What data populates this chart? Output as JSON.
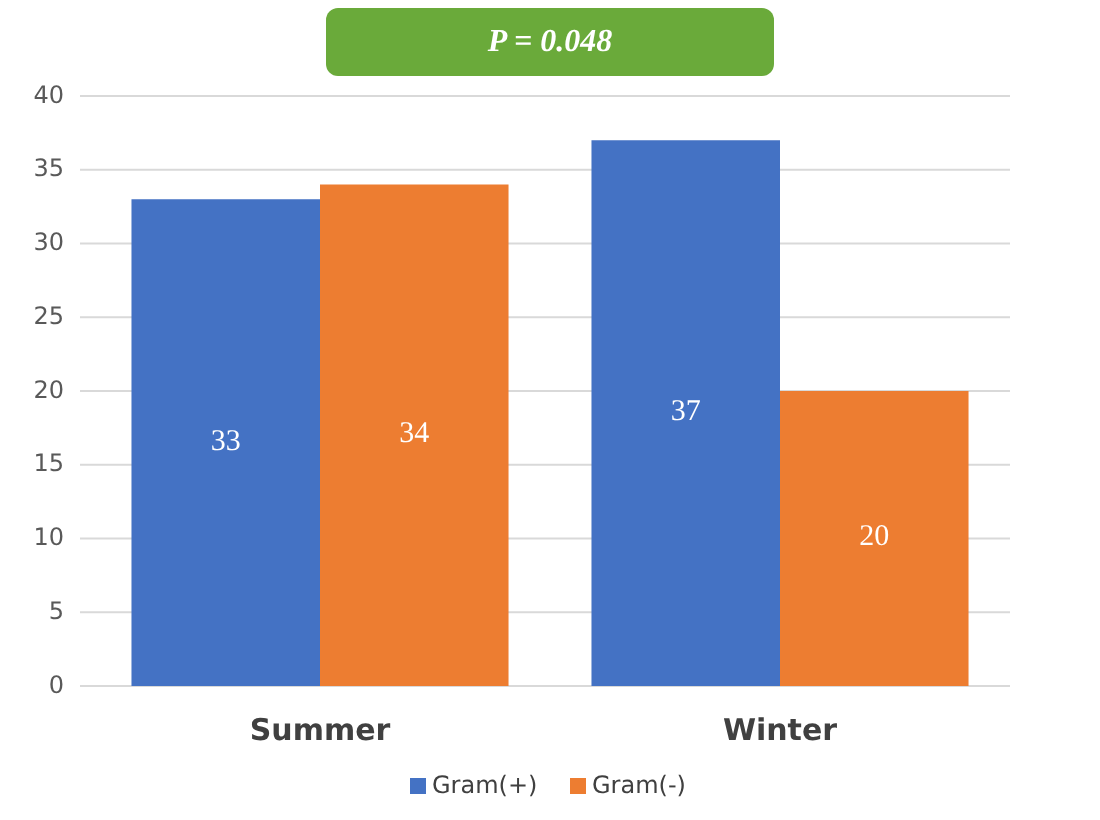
{
  "chart_data": {
    "type": "bar",
    "title": "P = 0.048",
    "categories": [
      "Summer",
      "Winter"
    ],
    "series": [
      {
        "name": "Gram(+)",
        "color": "#4472c4",
        "values": [
          33,
          37
        ]
      },
      {
        "name": "Gram(-)",
        "color": "#ed7d31",
        "values": [
          34,
          20
        ]
      }
    ],
    "ylim": [
      0,
      40
    ],
    "yticks": [
      0,
      5,
      10,
      15,
      20,
      25,
      30,
      35,
      40
    ],
    "grid": "y",
    "legend": "bottom",
    "data_labels": true
  }
}
